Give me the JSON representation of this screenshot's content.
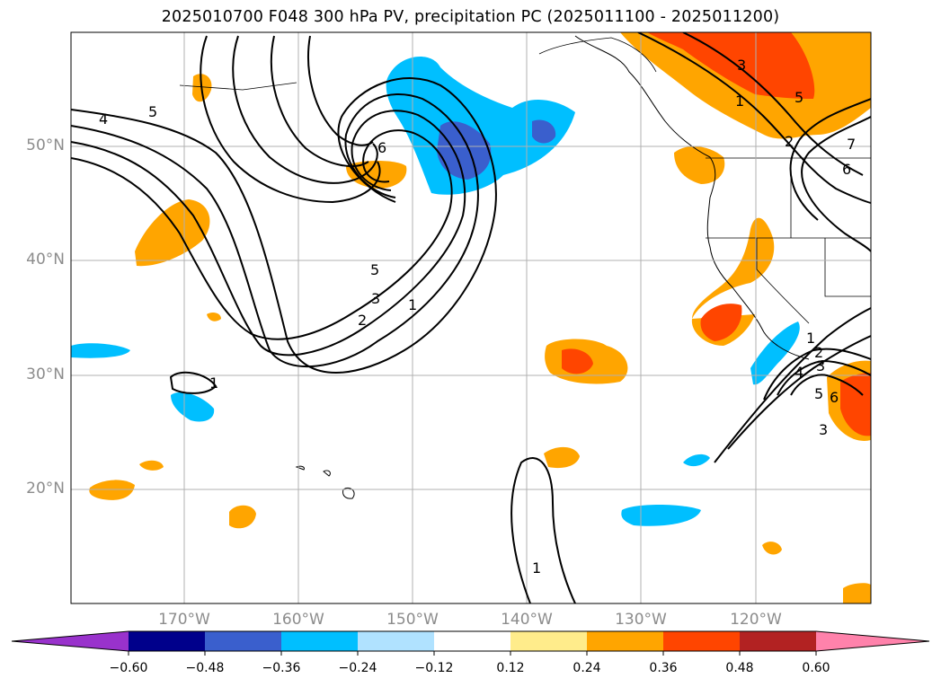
{
  "title": "2025010700 F048 300 hPa PV, precipitation PC (2025011100 - 2025011200)",
  "map": {
    "lat_labels": [
      "50°N",
      "40°N",
      "30°N",
      "20°N"
    ],
    "lon_labels": [
      "170°W",
      "160°W",
      "150°W",
      "140°W",
      "130°W",
      "120°W"
    ],
    "gridlines": true,
    "land_outline_color": "#000000"
  },
  "pv_contour_labels": [
    "4",
    "5",
    "6",
    "5",
    "3",
    "2",
    "1",
    "1",
    "3",
    "1",
    "2",
    "5",
    "6",
    "7",
    "1",
    "2",
    "3",
    "4",
    "5",
    "6",
    "3",
    "1"
  ],
  "colorbar": {
    "ticks": [
      "−0.60",
      "−0.48",
      "−0.36",
      "−0.24",
      "−0.12",
      "0.12",
      "0.24",
      "0.36",
      "0.48",
      "0.60"
    ],
    "colors": [
      "#9932cc",
      "#00008b",
      "#3a5fcd",
      "#00bfff",
      "#b0e2ff",
      "#ffffff",
      "#ffec8b",
      "#ffa500",
      "#ff4500",
      "#b22222",
      "#ff82ab"
    ]
  }
}
